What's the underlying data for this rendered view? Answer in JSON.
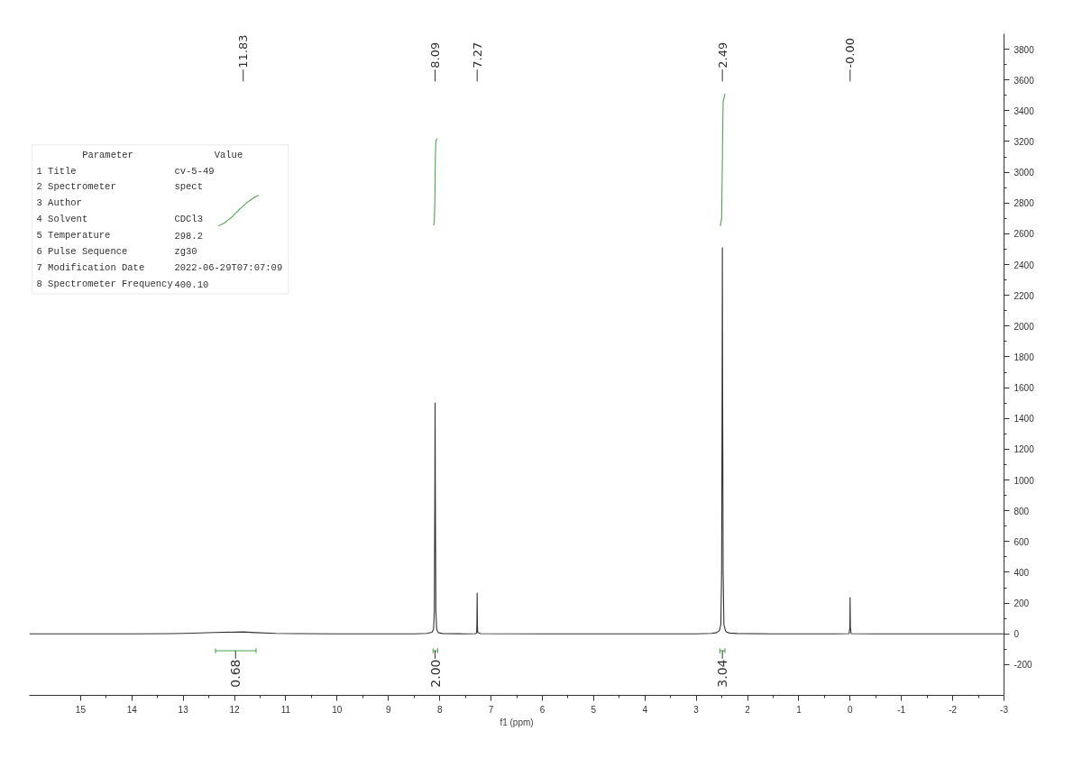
{
  "chart_data": {
    "type": "line",
    "xlabel": "f1 (ppm)",
    "xlim": [
      16,
      -3
    ],
    "ylim": [
      -400,
      3900
    ],
    "xticks": [
      15,
      14,
      13,
      12,
      11,
      10,
      9,
      8,
      7,
      6,
      5,
      4,
      3,
      2,
      1,
      0,
      -1,
      -2,
      -3
    ],
    "yticks": [
      -200,
      0,
      200,
      400,
      600,
      800,
      1000,
      1200,
      1400,
      1600,
      1800,
      2000,
      2200,
      2400,
      2600,
      2800,
      3000,
      3200,
      3400,
      3600,
      3800
    ],
    "grid": false,
    "series": [
      {
        "color": "#333333",
        "x": [
          16,
          15,
          14,
          13.2,
          12.8,
          12.4,
          12.0,
          11.83,
          11.6,
          11.2,
          10.8,
          10,
          9,
          8.5,
          8.25,
          8.15,
          8.12,
          8.105,
          8.095,
          8.09,
          8.085,
          8.075,
          8.06,
          8.03,
          7.95,
          7.5,
          7.3,
          7.28,
          7.275,
          7.27,
          7.265,
          7.26,
          7.2,
          6,
          5,
          4,
          3,
          2.7,
          2.6,
          2.55,
          2.52,
          2.505,
          2.495,
          2.49,
          2.485,
          2.475,
          2.46,
          2.43,
          2.4,
          2.35,
          2.2,
          1.5,
          1,
          0.3,
          0.02,
          0.005,
          0,
          -0.005,
          -0.02,
          -0.5,
          -1.5,
          -3
        ],
        "values": [
          0,
          0,
          0,
          1,
          4,
          9,
          11,
          12,
          8,
          3,
          1,
          0,
          0,
          0,
          3,
          10,
          30,
          150,
          900,
          1500,
          900,
          150,
          30,
          8,
          2,
          0,
          1,
          8,
          60,
          265,
          60,
          8,
          1,
          0,
          0,
          0,
          0,
          3,
          8,
          20,
          60,
          400,
          1600,
          2510,
          1600,
          400,
          60,
          20,
          10,
          5,
          2,
          0,
          0,
          0,
          1,
          40,
          235,
          40,
          1,
          0,
          0,
          0
        ]
      },
      {
        "color": "#4da64d",
        "x": [
          12.32,
          12.2,
          12.05,
          11.9,
          11.75,
          11.6,
          11.53
        ],
        "values": [
          2650,
          2670,
          2710,
          2760,
          2805,
          2840,
          2850
        ]
      },
      {
        "color": "#4da64d",
        "x": [
          8.12,
          8.105,
          8.095,
          8.09,
          8.085,
          8.075,
          8.05
        ],
        "values": [
          2655,
          2680,
          2800,
          2940,
          3080,
          3200,
          3220
        ]
      },
      {
        "color": "#4da64d",
        "x": [
          2.53,
          2.505,
          2.495,
          2.49,
          2.485,
          2.475,
          2.44
        ],
        "values": [
          2650,
          2700,
          2950,
          3080,
          3250,
          3460,
          3510
        ]
      },
      {
        "color": "#4da64d",
        "x": [
          12.37,
          12.37,
          12.37,
          11.58,
          11.58,
          11.58
        ],
        "values": [
          -95,
          -125,
          -110,
          -110,
          -95,
          -125
        ]
      },
      {
        "color": "#4da64d",
        "x": [
          8.13,
          8.13,
          8.13,
          8.04,
          8.04,
          8.04
        ],
        "values": [
          -95,
          -125,
          -110,
          -110,
          -95,
          -125
        ]
      },
      {
        "color": "#4da64d",
        "x": [
          2.54,
          2.54,
          2.54,
          2.44,
          2.44,
          2.44
        ],
        "values": [
          -95,
          -125,
          -110,
          -110,
          -95,
          -125
        ]
      }
    ],
    "annotations": [
      "Parameter    Value",
      "1 Title    cv-5-49",
      "2 Spectrometer    spect",
      "3 Author",
      "4 Solvent    CDCl3",
      "5 Temperature    298.2",
      "6 Pulse Sequence    zg30",
      "7 Modification Date    2022-06-29T07:07:09",
      "8 Spectrometer Frequency  400.10",
      {
        "text": "11.83",
        "x": 11.83
      },
      {
        "text": "8.09",
        "x": 8.09
      },
      {
        "text": "7.27",
        "x": 7.27
      },
      {
        "text": "2.49",
        "x": 2.49
      },
      {
        "text": "-0.00",
        "x": 0.0
      },
      {
        "text": "0.68",
        "x": 11.98,
        "y": -110
      },
      {
        "text": "2.00",
        "x": 8.09,
        "y": -110
      },
      {
        "text": "3.04",
        "x": 2.49,
        "y": -110
      }
    ]
  }
}
